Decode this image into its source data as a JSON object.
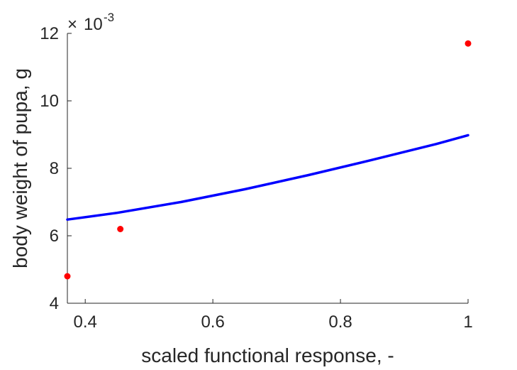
{
  "chart_data": {
    "type": "line",
    "xlabel": "scaled functional response, -",
    "ylabel": "body weight of pupa, g",
    "y_multiplier_base": "10",
    "y_multiplier_exponent": "-3",
    "xlim": [
      0.372,
      1.0
    ],
    "ylim": [
      4,
      12
    ],
    "x_ticks": [
      0.4,
      0.6,
      0.8,
      1.0
    ],
    "x_tick_labels": [
      "0.4",
      "0.6",
      "0.8",
      "1"
    ],
    "y_ticks": [
      4,
      6,
      8,
      10,
      12
    ],
    "y_tick_labels": [
      "4",
      "6",
      "8",
      "10",
      "12"
    ],
    "grid": false,
    "legend": "none",
    "series": [
      {
        "style": "line",
        "color": "#0000ff",
        "x": [
          0.372,
          0.45,
          0.55,
          0.65,
          0.75,
          0.85,
          0.95,
          1.0
        ],
        "y": [
          6.48,
          6.68,
          7.0,
          7.38,
          7.8,
          8.25,
          8.72,
          8.98
        ]
      },
      {
        "style": "points",
        "color": "#ff0000",
        "x": [
          0.372,
          0.455,
          1.0
        ],
        "y": [
          4.8,
          6.2,
          11.7
        ]
      }
    ]
  }
}
